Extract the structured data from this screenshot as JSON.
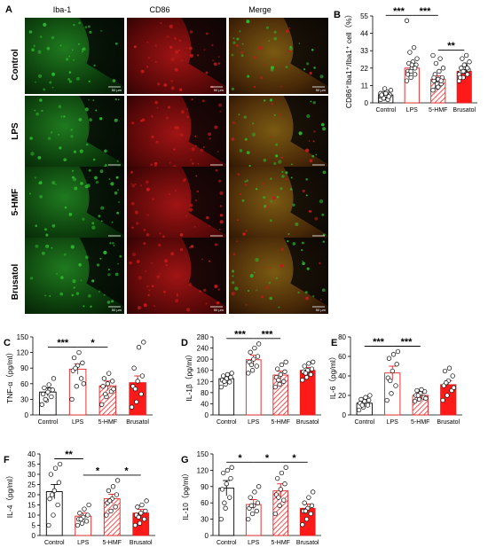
{
  "micrographs": {
    "panel_label": "A",
    "columns": [
      "Iba-1",
      "CD86",
      "Merge"
    ],
    "rows": [
      "Control",
      "LPS",
      "5-HMF",
      "Brusatol"
    ],
    "scale_bar": "50 μm",
    "colors": {
      "green": "#2db52d",
      "red": "#c41a1a",
      "merge": "#8a5a1a"
    }
  },
  "colors": {
    "control": "#ffffff",
    "lps": "#ffffff",
    "hmf": "#ff6666",
    "brusatol": "#ff1a1a",
    "bar_edge_red": "#e02020"
  },
  "chart_data": [
    {
      "panel": "B",
      "type": "bar",
      "categories": [
        "Control",
        "LPS",
        "5-HMF",
        "Brusatol"
      ],
      "values": [
        5,
        22,
        15,
        20
      ],
      "errors": [
        0.8,
        2,
        2,
        1.2
      ],
      "points": [
        [
          2,
          3,
          4,
          4,
          5,
          5,
          6,
          7,
          8,
          3,
          2,
          6,
          9,
          4,
          5,
          6
        ],
        [
          14,
          16,
          18,
          20,
          22,
          24,
          25,
          26,
          28,
          32,
          35,
          52,
          20,
          22,
          18,
          24
        ],
        [
          8,
          10,
          12,
          14,
          15,
          16,
          18,
          20,
          22,
          25,
          28,
          30,
          12,
          14,
          16,
          10
        ],
        [
          14,
          16,
          18,
          19,
          20,
          21,
          22,
          24,
          26,
          28,
          30,
          18,
          20,
          22,
          16,
          24
        ]
      ],
      "ylabel": "CD86⁺Iba1⁺/Iba1⁺ cell（%）",
      "yticks": [
        0,
        11,
        22,
        33,
        44,
        55
      ],
      "ylim": [
        0,
        55
      ],
      "significance": [
        {
          "from": 0,
          "to": 1,
          "label": "***"
        },
        {
          "from": 1,
          "to": 2,
          "label": "***"
        },
        {
          "from": 2,
          "to": 3,
          "label": "**"
        }
      ]
    },
    {
      "panel": "C",
      "type": "bar",
      "categories": [
        "Control",
        "LPS",
        "5-HMF",
        "Brusatol"
      ],
      "values": [
        44,
        88,
        56,
        62
      ],
      "errors": [
        8,
        10,
        9,
        13
      ],
      "points": [
        [
          20,
          28,
          35,
          40,
          44,
          48,
          52,
          58,
          70,
          30
        ],
        [
          30,
          55,
          70,
          85,
          95,
          100,
          110,
          120,
          60,
          90
        ],
        [
          20,
          35,
          45,
          55,
          60,
          65,
          70,
          80,
          50,
          40
        ],
        [
          15,
          25,
          40,
          55,
          65,
          75,
          90,
          130,
          140,
          50
        ]
      ],
      "ylabel": "TNF-α（pg/ml）",
      "yticks": [
        0,
        30,
        60,
        90,
        120,
        150
      ],
      "ylim": [
        0,
        150
      ],
      "significance": [
        {
          "from": 0,
          "to": 1,
          "label": "***"
        },
        {
          "from": 1,
          "to": 2,
          "label": "*"
        }
      ]
    },
    {
      "panel": "D",
      "type": "bar",
      "categories": [
        "Control",
        "LPS",
        "5-HMF",
        "Brusatol"
      ],
      "values": [
        130,
        198,
        143,
        160
      ],
      "errors": [
        8,
        16,
        14,
        10
      ],
      "points": [
        [
          100,
          110,
          118,
          125,
          130,
          135,
          140,
          145,
          150,
          120
        ],
        [
          150,
          160,
          175,
          190,
          200,
          210,
          225,
          240,
          255,
          180
        ],
        [
          100,
          110,
          120,
          135,
          145,
          155,
          165,
          180,
          190,
          125
        ],
        [
          125,
          135,
          145,
          155,
          160,
          165,
          175,
          185,
          190,
          150
        ]
      ],
      "ylabel": "IL-1β（pg/ml）",
      "yticks": [
        0,
        40,
        80,
        120,
        160,
        200,
        240,
        280
      ],
      "ylim": [
        0,
        280
      ],
      "significance": [
        {
          "from": 0,
          "to": 1,
          "label": "***"
        },
        {
          "from": 1,
          "to": 2,
          "label": "***"
        }
      ]
    },
    {
      "panel": "E",
      "type": "bar",
      "categories": [
        "Control",
        "LPS",
        "5-HMF",
        "Brusatol"
      ],
      "values": [
        12,
        43,
        20,
        31
      ],
      "errors": [
        2,
        7,
        2.5,
        4
      ],
      "points": [
        [
          5,
          8,
          10,
          12,
          14,
          15,
          16,
          18,
          20,
          10
        ],
        [
          15,
          22,
          30,
          38,
          45,
          52,
          58,
          62,
          65,
          35
        ],
        [
          14,
          16,
          18,
          20,
          22,
          24,
          25,
          26,
          17,
          20
        ],
        [
          15,
          20,
          25,
          30,
          35,
          40,
          45,
          48,
          28,
          33
        ]
      ],
      "ylabel": "IL-6（pg/ml）",
      "yticks": [
        0,
        20,
        40,
        60,
        80
      ],
      "ylim": [
        0,
        80
      ],
      "significance": [
        {
          "from": 0,
          "to": 1,
          "label": "***"
        },
        {
          "from": 1,
          "to": 2,
          "label": "***"
        }
      ]
    },
    {
      "panel": "F",
      "type": "bar",
      "categories": [
        "Control",
        "LPS",
        "5-HMF",
        "Brusatol"
      ],
      "values": [
        21.5,
        9.5,
        18,
        11
      ],
      "errors": [
        3.5,
        1.5,
        2.2,
        1.8
      ],
      "points": [
        [
          5,
          10,
          15,
          18,
          22,
          26,
          30,
          33,
          35,
          20
        ],
        [
          5,
          6,
          7,
          8,
          9,
          10,
          11,
          13,
          15,
          8
        ],
        [
          10,
          12,
          14,
          16,
          18,
          20,
          22,
          24,
          27,
          17
        ],
        [
          5,
          6,
          8,
          10,
          11,
          12,
          14,
          15,
          17,
          9
        ]
      ],
      "ylabel": "IL-4（pg/ml）",
      "yticks": [
        0,
        5,
        10,
        15,
        20,
        25,
        30,
        35,
        40
      ],
      "ylim": [
        0,
        40
      ],
      "significance": [
        {
          "from": 0,
          "to": 1,
          "label": "**"
        },
        {
          "from": 1,
          "to": 2,
          "label": "*"
        },
        {
          "from": 2,
          "to": 3,
          "label": "*"
        }
      ]
    },
    {
      "panel": "G",
      "type": "bar",
      "categories": [
        "Control",
        "LPS",
        "5-HMF",
        "Brusatol"
      ],
      "values": [
        87,
        57,
        82,
        50
      ],
      "errors": [
        14,
        9,
        13,
        8
      ],
      "points": [
        [
          30,
          50,
          70,
          85,
          95,
          105,
          115,
          120,
          125,
          60
        ],
        [
          30,
          40,
          45,
          50,
          55,
          60,
          70,
          80,
          90,
          55
        ],
        [
          40,
          55,
          65,
          75,
          85,
          95,
          105,
          115,
          125,
          70
        ],
        [
          20,
          30,
          40,
          45,
          50,
          55,
          60,
          70,
          80,
          45
        ]
      ],
      "ylabel": "IL-10（pg/ml）",
      "yticks": [
        0,
        30,
        60,
        90,
        120,
        150
      ],
      "ylim": [
        0,
        150
      ],
      "significance": [
        {
          "from": 0,
          "to": 1,
          "label": "*"
        },
        {
          "from": 1,
          "to": 2,
          "label": "*"
        },
        {
          "from": 2,
          "to": 3,
          "label": "*"
        }
      ]
    }
  ]
}
